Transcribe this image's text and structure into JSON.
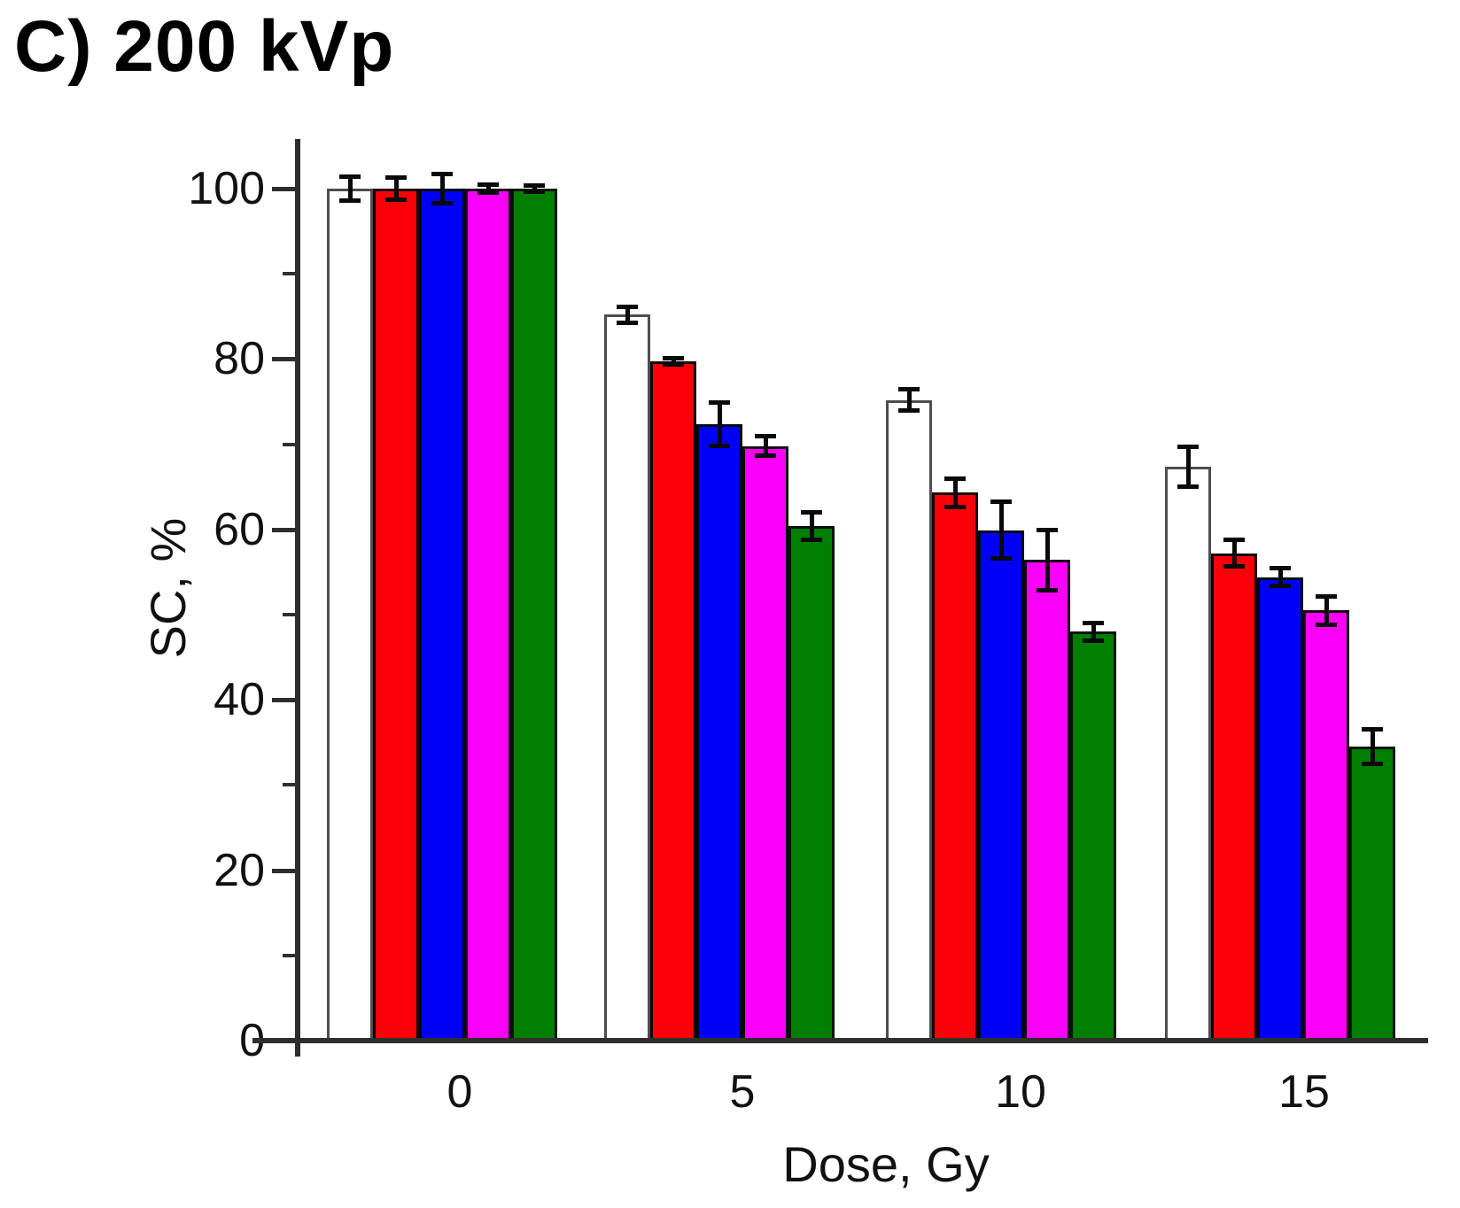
{
  "figure": {
    "title": "C) 200 kVp"
  },
  "chart_data": {
    "type": "bar",
    "title": "C) 200 kVp",
    "xlabel": "Dose, Gy",
    "ylabel": "SC, %",
    "categories": [
      "0",
      "5",
      "10",
      "15"
    ],
    "series": [
      {
        "name": "white",
        "color": "#ffffff",
        "border": "#4d4d4d",
        "values": [
          100,
          85.2,
          75.2,
          67.4
        ],
        "errors": [
          1.5,
          1.0,
          1.3,
          2.4
        ]
      },
      {
        "name": "red",
        "color": "#fb0007",
        "border": "#140000",
        "values": [
          100,
          79.7,
          64.3,
          57.2
        ],
        "errors": [
          1.3,
          0.4,
          1.7,
          1.6
        ]
      },
      {
        "name": "blue",
        "color": "#0000fa",
        "border": "#000a14",
        "values": [
          100,
          72.4,
          59.9,
          54.4
        ],
        "errors": [
          1.8,
          2.6,
          3.4,
          1.1
        ]
      },
      {
        "name": "magenta",
        "color": "#f900f9",
        "border": "#140014",
        "values": [
          100,
          69.8,
          56.4,
          50.5
        ],
        "errors": [
          0.5,
          1.2,
          3.6,
          1.7
        ]
      },
      {
        "name": "green",
        "color": "#007e00",
        "border": "#001400",
        "values": [
          100,
          60.4,
          48.0,
          34.5
        ],
        "errors": [
          0.4,
          1.7,
          1.1,
          2.1
        ]
      }
    ],
    "ylim": [
      0,
      100
    ],
    "y_major_ticks": [
      0,
      20,
      40,
      60,
      80,
      100
    ],
    "y_minor_ticks": [
      10,
      30,
      50,
      70,
      90
    ],
    "error_bars": true,
    "grid": false,
    "legend": "none"
  }
}
